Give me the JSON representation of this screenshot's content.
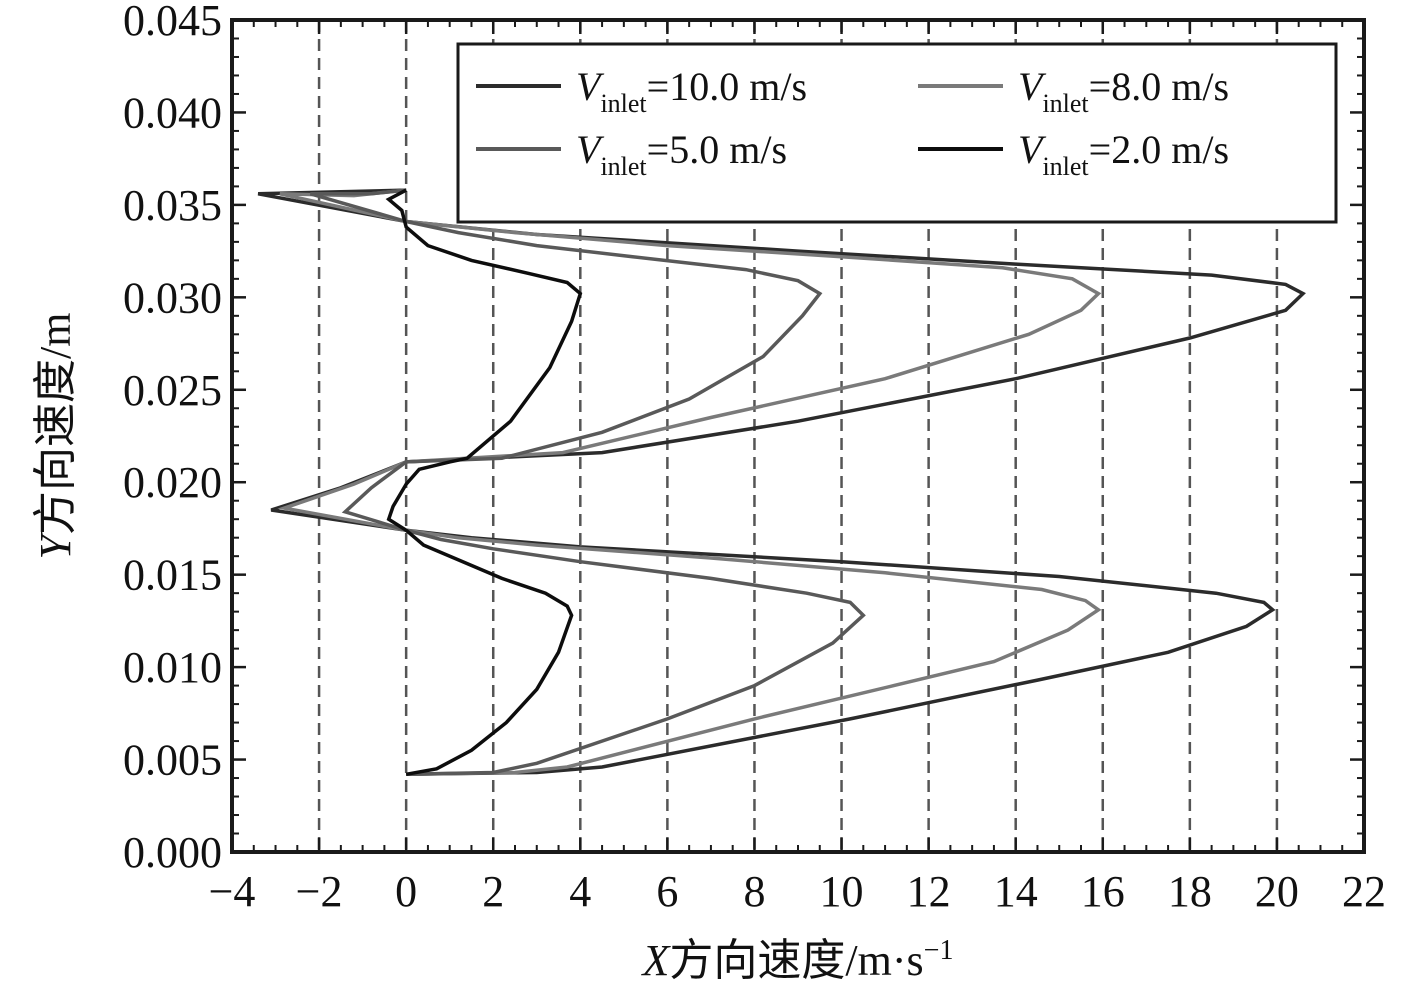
{
  "chart_data": {
    "type": "line",
    "title": "",
    "xlabel": {
      "var": "X",
      "rest": "方向速度/m·s",
      "sup": "−1"
    },
    "ylabel": {
      "var": "Y",
      "rest": "方向速度/m"
    },
    "xlim": [
      -4,
      22
    ],
    "ylim": [
      0,
      0.045
    ],
    "xticks": [
      -4,
      -2,
      0,
      2,
      4,
      6,
      8,
      10,
      12,
      14,
      16,
      18,
      20,
      22
    ],
    "xtick_labels": [
      "−4",
      "−2",
      "0",
      "2",
      "4",
      "6",
      "8",
      "10",
      "12",
      "14",
      "16",
      "18",
      "20",
      "22"
    ],
    "yticks": [
      0,
      0.005,
      0.01,
      0.015,
      0.02,
      0.025,
      0.03,
      0.035,
      0.04,
      0.045
    ],
    "ytick_labels": [
      "0.000",
      "0.005",
      "0.010",
      "0.015",
      "0.020",
      "0.025",
      "0.030",
      "0.035",
      "0.040",
      "0.045"
    ],
    "grid_x": [
      -2,
      0,
      2,
      4,
      6,
      8,
      10,
      12,
      14,
      16,
      18,
      20
    ],
    "legend": {
      "position": "top-right",
      "columns": 2,
      "entries": [
        {
          "var": "V",
          "sub": "inlet",
          "text": "=10.0 m/s"
        },
        {
          "var": "V",
          "sub": "inlet",
          "text": "=8.0 m/s"
        },
        {
          "var": "V",
          "sub": "inlet",
          "text": "=5.0 m/s"
        },
        {
          "var": "V",
          "sub": "inlet",
          "text": "=2.0 m/s"
        }
      ]
    },
    "series": [
      {
        "name": "Vinlet=10.0 m/s",
        "color": "#2b2b2b",
        "points": [
          [
            0,
            0.0042
          ],
          [
            3,
            0.0043
          ],
          [
            4.5,
            0.0046
          ],
          [
            10.2,
            0.0072
          ],
          [
            14.5,
            0.0093
          ],
          [
            17.5,
            0.0108
          ],
          [
            19.3,
            0.0122
          ],
          [
            19.9,
            0.0131
          ],
          [
            19.7,
            0.0135
          ],
          [
            18.6,
            0.014
          ],
          [
            15,
            0.0149
          ],
          [
            10,
            0.0157
          ],
          [
            4,
            0.0165
          ],
          [
            1.5,
            0.017
          ],
          [
            0,
            0.0174
          ],
          [
            -3.1,
            0.0185
          ],
          [
            -1.5,
            0.0197
          ],
          [
            0,
            0.0211
          ],
          [
            4.5,
            0.0216
          ],
          [
            9,
            0.0233
          ],
          [
            14,
            0.0256
          ],
          [
            18,
            0.0278
          ],
          [
            20.2,
            0.0293
          ],
          [
            20.6,
            0.0302
          ],
          [
            20.2,
            0.0307
          ],
          [
            18.5,
            0.0312
          ],
          [
            14,
            0.0318
          ],
          [
            9,
            0.0325
          ],
          [
            3,
            0.0334
          ],
          [
            0,
            0.0341
          ],
          [
            -3.4,
            0.0356
          ],
          [
            0,
            0.0358
          ]
        ]
      },
      {
        "name": "Vinlet=8.0 m/s",
        "color": "#7a7a7a",
        "points": [
          [
            0,
            0.0042
          ],
          [
            2.5,
            0.0043
          ],
          [
            3.7,
            0.0046
          ],
          [
            8,
            0.0072
          ],
          [
            11.2,
            0.009
          ],
          [
            13.5,
            0.0103
          ],
          [
            15.2,
            0.012
          ],
          [
            15.9,
            0.0131
          ],
          [
            15.6,
            0.0136
          ],
          [
            14.6,
            0.0142
          ],
          [
            11,
            0.0151
          ],
          [
            7,
            0.0159
          ],
          [
            3,
            0.0166
          ],
          [
            1.2,
            0.017
          ],
          [
            0,
            0.0174
          ],
          [
            -2.8,
            0.0186
          ],
          [
            -1.2,
            0.0199
          ],
          [
            0,
            0.0211
          ],
          [
            3.6,
            0.0216
          ],
          [
            7,
            0.0235
          ],
          [
            11,
            0.0256
          ],
          [
            14.3,
            0.028
          ],
          [
            15.5,
            0.0293
          ],
          [
            15.9,
            0.0302
          ],
          [
            15.3,
            0.031
          ],
          [
            13.7,
            0.0316
          ],
          [
            10,
            0.0322
          ],
          [
            6,
            0.0328
          ],
          [
            2.5,
            0.0335
          ],
          [
            0,
            0.0341
          ],
          [
            -2.9,
            0.0356
          ],
          [
            -1.2,
            0.0355
          ],
          [
            0,
            0.0358
          ]
        ]
      },
      {
        "name": "Vinlet=5.0 m/s",
        "color": "#595959",
        "points": [
          [
            0,
            0.0042
          ],
          [
            2,
            0.0043
          ],
          [
            3,
            0.0048
          ],
          [
            6,
            0.0072
          ],
          [
            8,
            0.009
          ],
          [
            9.8,
            0.0113
          ],
          [
            10.5,
            0.0128
          ],
          [
            10.2,
            0.0135
          ],
          [
            9.2,
            0.014
          ],
          [
            7,
            0.0148
          ],
          [
            4,
            0.0157
          ],
          [
            2,
            0.0164
          ],
          [
            0.8,
            0.0169
          ],
          [
            0,
            0.0174
          ],
          [
            -1.4,
            0.0184
          ],
          [
            -0.8,
            0.0197
          ],
          [
            0,
            0.0211
          ],
          [
            2.2,
            0.0213
          ],
          [
            4.5,
            0.0227
          ],
          [
            6.5,
            0.0245
          ],
          [
            8.2,
            0.0268
          ],
          [
            9.1,
            0.029
          ],
          [
            9.5,
            0.0302
          ],
          [
            9.0,
            0.0309
          ],
          [
            7.8,
            0.0315
          ],
          [
            5.2,
            0.0322
          ],
          [
            3,
            0.0328
          ],
          [
            1.2,
            0.0335
          ],
          [
            0,
            0.0341
          ],
          [
            -2.2,
            0.0356
          ],
          [
            -0.8,
            0.0356
          ],
          [
            0,
            0.0358
          ]
        ]
      },
      {
        "name": "Vinlet=2.0 m/s",
        "color": "#0d0d0d",
        "points": [
          [
            0,
            0.0042
          ],
          [
            0.7,
            0.0045
          ],
          [
            1.5,
            0.0055
          ],
          [
            2.3,
            0.007
          ],
          [
            3.0,
            0.0088
          ],
          [
            3.5,
            0.0108
          ],
          [
            3.8,
            0.0128
          ],
          [
            3.7,
            0.0133
          ],
          [
            3.2,
            0.014
          ],
          [
            2.2,
            0.0148
          ],
          [
            1.2,
            0.0158
          ],
          [
            0.4,
            0.0166
          ],
          [
            0,
            0.0174
          ],
          [
            -0.4,
            0.018
          ],
          [
            -0.3,
            0.0187
          ],
          [
            0,
            0.0199
          ],
          [
            0.3,
            0.0207
          ],
          [
            1,
            0.0211
          ],
          [
            1.4,
            0.0213
          ],
          [
            2.4,
            0.0233
          ],
          [
            3.3,
            0.0262
          ],
          [
            3.8,
            0.0287
          ],
          [
            4.0,
            0.0302
          ],
          [
            3.7,
            0.0308
          ],
          [
            2.8,
            0.0313
          ],
          [
            1.5,
            0.032
          ],
          [
            0.5,
            0.0328
          ],
          [
            0,
            0.0338
          ],
          [
            -0.1,
            0.0347
          ],
          [
            -0.4,
            0.0353
          ],
          [
            0,
            0.0358
          ]
        ]
      }
    ]
  }
}
